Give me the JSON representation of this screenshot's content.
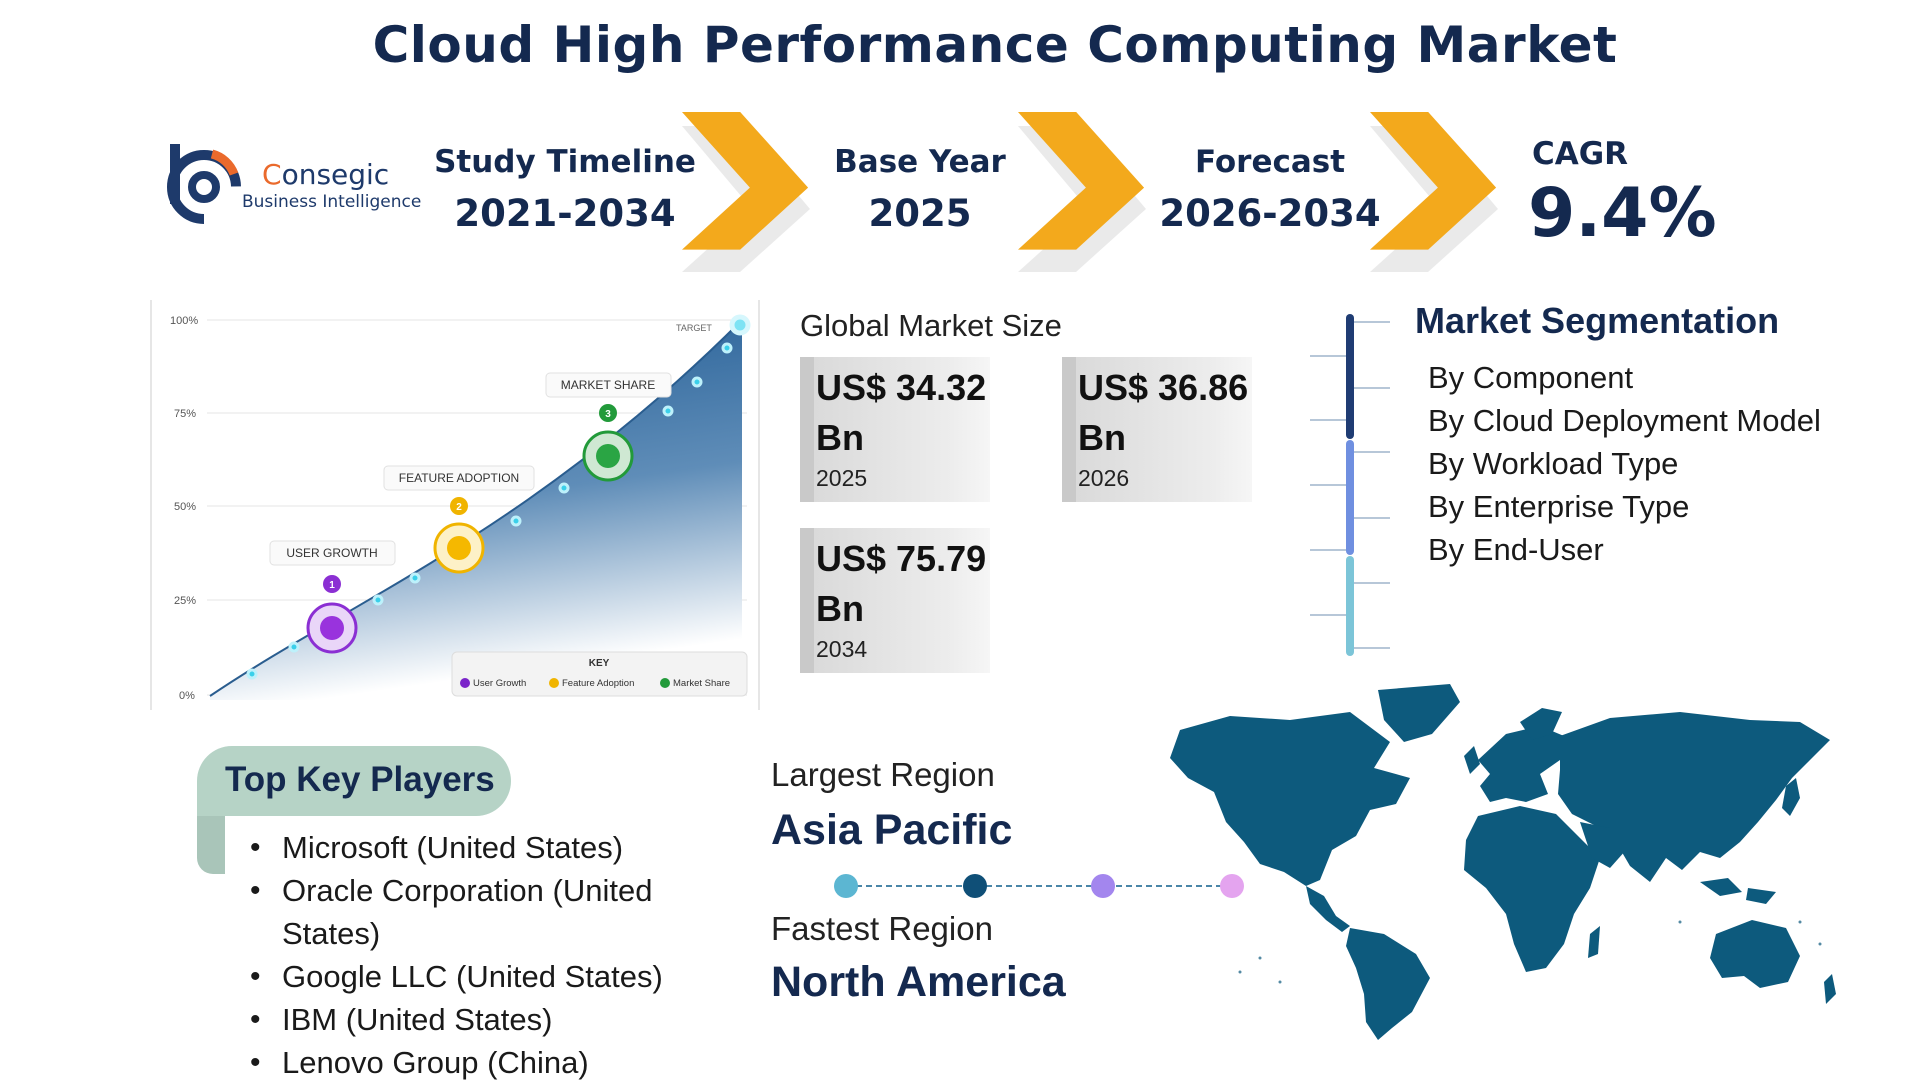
{
  "title": "Cloud High Performance Computing Market",
  "logo": {
    "brand_first": "C",
    "brand_rest": "onsegic",
    "sub": "Business Intelligence"
  },
  "timeline": [
    {
      "label": "Study Timeline",
      "value": "2021-2034"
    },
    {
      "label": "Base Year",
      "value": "2025"
    },
    {
      "label": "Forecast",
      "value": "2026-2034"
    }
  ],
  "cagr": {
    "label": "CAGR",
    "value": "9.4%"
  },
  "chart": {
    "y_ticks": [
      "100%",
      "75%",
      "50%",
      "25%",
      "0%"
    ],
    "target_label": "TARGET",
    "milestones": [
      {
        "number": "1",
        "label": "USER GROWTH"
      },
      {
        "number": "2",
        "label": "FEATURE ADOPTION"
      },
      {
        "number": "3",
        "label": "MARKET SHARE"
      }
    ],
    "key": {
      "title": "KEY",
      "items": [
        {
          "label": "User Growth",
          "color": "#7a24c9"
        },
        {
          "label": "Feature Adoption",
          "color": "#f0b400"
        },
        {
          "label": "Market Share",
          "color": "#229a3a"
        }
      ]
    },
    "area_color": "#1e5a93"
  },
  "market_size": {
    "title": "Global Market Size",
    "cards": [
      {
        "value": "US$ 34.32 Bn",
        "year": "2025"
      },
      {
        "value": "US$ 36.86 Bn",
        "year": "2026"
      },
      {
        "value": "US$ 75.79 Bn",
        "year": "2034"
      }
    ]
  },
  "segmentation": {
    "title": "Market Segmentation",
    "items": [
      "By Component",
      "By Cloud Deployment Model",
      "By Workload Type",
      "By Enterprise Type",
      "By End-User"
    ]
  },
  "key_players": {
    "title": "Top Key Players",
    "items": [
      "Microsoft (United States)",
      "Oracle Corporation (United States)",
      "Google LLC (United States)",
      "IBM (United States)",
      "Lenovo Group (China)"
    ]
  },
  "regions": {
    "largest_label": "Largest Region",
    "largest_value": "Asia Pacific",
    "fastest_label": "Fastest Region",
    "fastest_value": "North America",
    "dot_colors": [
      "#5cb6d2",
      "#0f4f77",
      "#a386ee",
      "#e4a4ef"
    ]
  },
  "colors": {
    "title": "#14294f",
    "chevron": "#f3a91c",
    "map": "#0d5a7d",
    "accent_orange": "#ea6a2c"
  }
}
